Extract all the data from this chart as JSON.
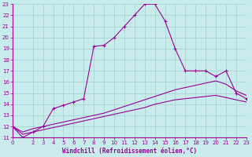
{
  "xlabel": "Windchill (Refroidissement éolien,°C)",
  "bg_color": "#c8ecec",
  "line_color": "#990099",
  "grid_color": "#aad4d4",
  "ylim": [
    11,
    23
  ],
  "xlim": [
    0,
    23
  ],
  "yticks": [
    11,
    12,
    13,
    14,
    15,
    16,
    17,
    18,
    19,
    20,
    21,
    22,
    23
  ],
  "xticks": [
    0,
    2,
    3,
    4,
    5,
    6,
    7,
    8,
    9,
    10,
    11,
    12,
    13,
    14,
    15,
    16,
    17,
    18,
    19,
    20,
    21,
    22,
    23
  ],
  "curve1_x": [
    0,
    1,
    2,
    3,
    4,
    5,
    6,
    7,
    8,
    9,
    10,
    11,
    12,
    13,
    14,
    15,
    16,
    17,
    18,
    19,
    20,
    21,
    22,
    23
  ],
  "curve1_y": [
    12,
    11,
    11.5,
    12,
    13.6,
    13.9,
    14.2,
    14.5,
    19.2,
    19.3,
    20,
    21,
    22,
    23,
    23,
    21.5,
    19,
    17,
    17,
    17,
    16.5,
    17,
    15,
    14.5
  ],
  "curve2_x": [
    0,
    1,
    2,
    3,
    4,
    5,
    6,
    7,
    8,
    9,
    10,
    11,
    12,
    13,
    14,
    15,
    16,
    17,
    18,
    19,
    20,
    21,
    22,
    23
  ],
  "curve2_y": [
    12,
    11.5,
    11.8,
    12.0,
    12.2,
    12.4,
    12.6,
    12.8,
    13.0,
    13.2,
    13.5,
    13.8,
    14.1,
    14.4,
    14.7,
    15.0,
    15.3,
    15.5,
    15.7,
    15.9,
    16.1,
    15.8,
    15.2,
    14.8
  ],
  "curve3_x": [
    0,
    1,
    2,
    3,
    4,
    5,
    6,
    7,
    8,
    9,
    10,
    11,
    12,
    13,
    14,
    15,
    16,
    17,
    18,
    19,
    20,
    21,
    22,
    23
  ],
  "curve3_y": [
    12,
    11.3,
    11.5,
    11.7,
    11.9,
    12.1,
    12.3,
    12.5,
    12.7,
    12.9,
    13.1,
    13.3,
    13.5,
    13.7,
    14.0,
    14.2,
    14.4,
    14.5,
    14.6,
    14.7,
    14.8,
    14.6,
    14.4,
    14.2
  ]
}
